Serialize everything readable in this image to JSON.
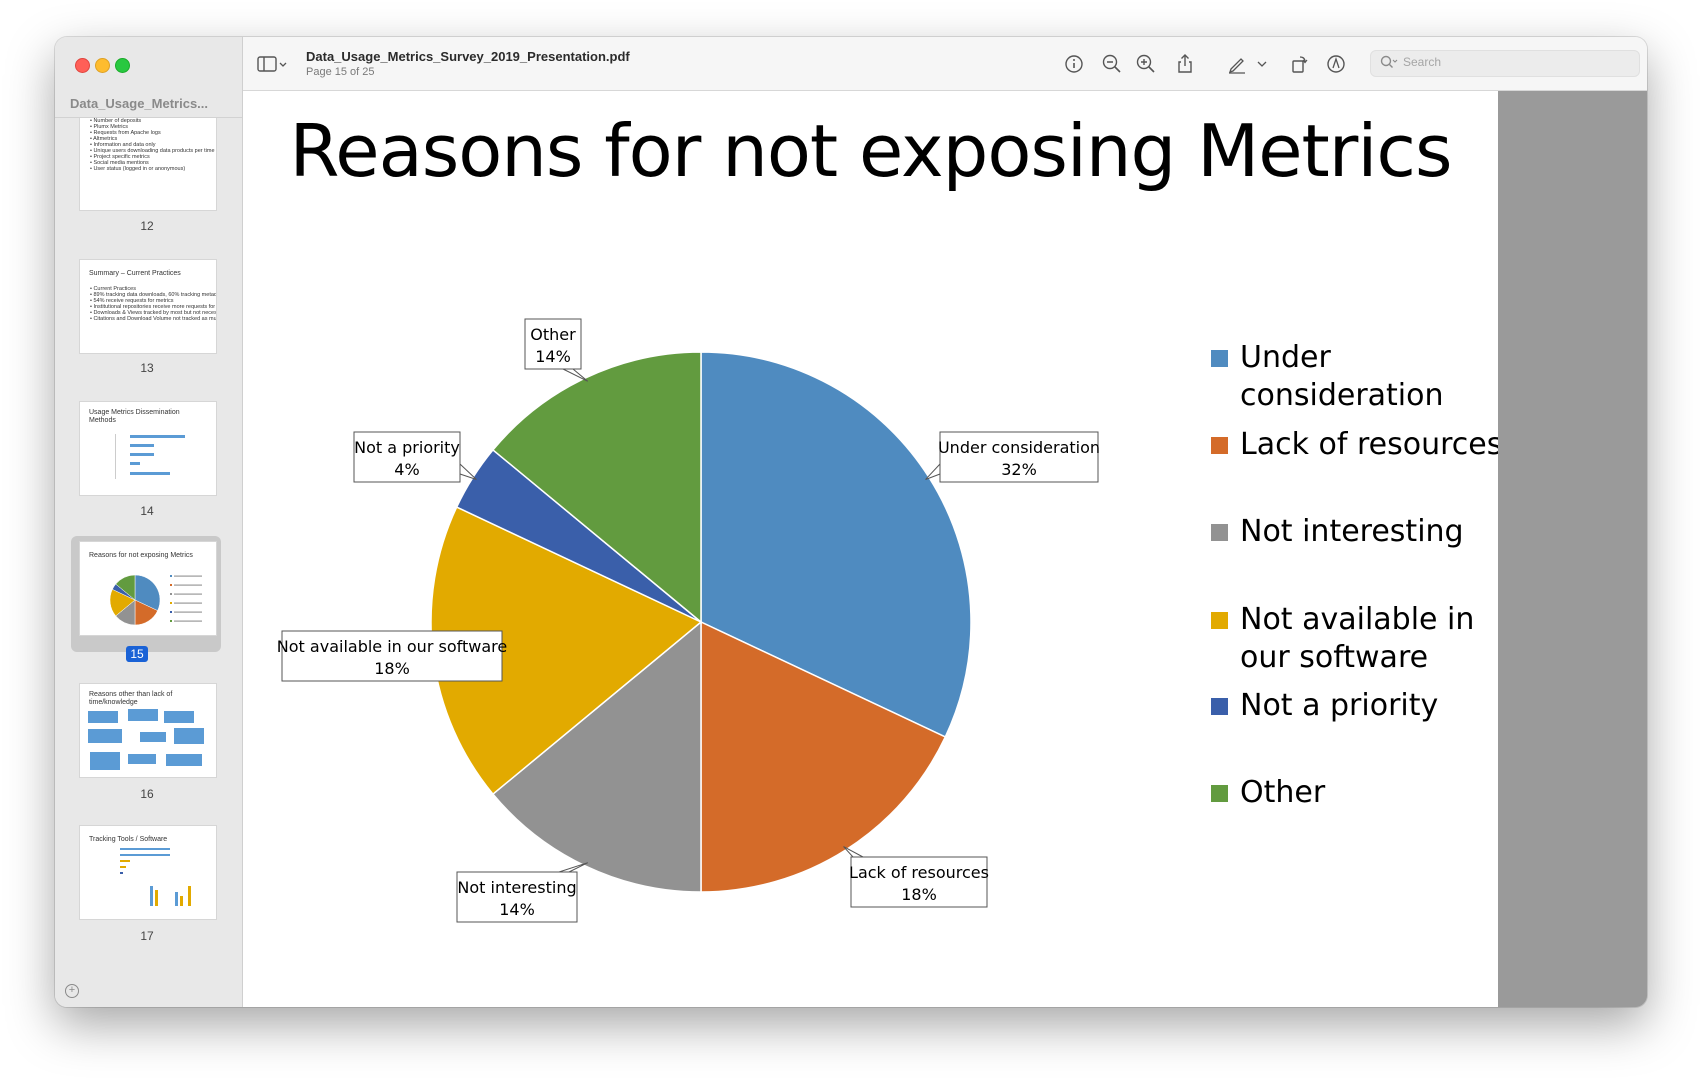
{
  "window": {
    "sidebar_title": "Data_Usage_Metrics...",
    "doc_title": "Data_Usage_Metrics_Survey_2019_Presentation.pdf",
    "doc_subtitle": "Page 15 of 25"
  },
  "toolbar": {
    "search_placeholder": "Search",
    "icons": [
      "sidebar-toggle-icon",
      "info-icon",
      "zoom-out-icon",
      "zoom-in-icon",
      "share-icon",
      "markup-pen-icon",
      "chevron-down-icon",
      "rotate-icon",
      "annotate-icon",
      "search-icon"
    ]
  },
  "thumbnails": [
    {
      "page": "12",
      "lines": [
        "• Number of deposits",
        "• Plumx Metrics",
        "• Requests from Apache logs",
        "• Altmetrics",
        "• Information and data only",
        "• Unique users downloading data products per time unit",
        "• Project specific metrics",
        "• Social media mentions",
        "• User status (logged in or anonymous)"
      ]
    },
    {
      "page": "13",
      "title": "Summary – Current Practices",
      "lines": [
        "• Current Practices",
        "• 89% tracking data downloads, 60% tracking metadata",
        "• 54% receive requests for metrics",
        "• Institutional repositories receive more requests for metrics",
        "• Downloads & Views tracked by most but not necessarily exposed",
        "• Citations and Download Volume not tracked as much"
      ]
    },
    {
      "page": "14",
      "title": "Usage Metrics Dissemination Methods"
    },
    {
      "page": "15",
      "title": "Reasons for not exposing Metrics",
      "selected": true
    },
    {
      "page": "16",
      "title": "Reasons other than lack of time/knowledge"
    },
    {
      "page": "17",
      "title": "Tracking Tools / Software"
    }
  ],
  "slide": {
    "title": "Reasons for not exposing Metrics"
  },
  "chart_data": {
    "type": "pie",
    "title": "Reasons for not exposing Metrics",
    "categories": [
      "Under consideration",
      "Lack of resources",
      "Not interesting",
      "Not available in our software",
      "Not a priority",
      "Other"
    ],
    "values": [
      32,
      18,
      14,
      18,
      4,
      14
    ],
    "value_labels": [
      "32%",
      "18%",
      "14%",
      "18%",
      "4%",
      "14%"
    ],
    "colors": [
      "#4f8bc0",
      "#d46b29",
      "#929292",
      "#e2aa00",
      "#3a5faa",
      "#629b3f"
    ],
    "legend": "right"
  }
}
